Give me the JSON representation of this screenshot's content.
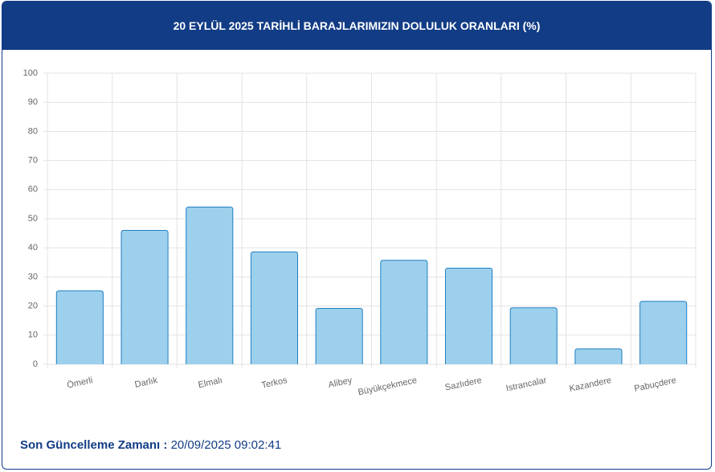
{
  "chart_data": {
    "type": "bar",
    "title": "20 EYLÜL 2025 TARİHLİ BARAJLARIMIZIN DOLULUK ORANLARI (%)",
    "categories": [
      "Ömerli",
      "Darlık",
      "Elmalı",
      "Terkos",
      "Alibey",
      "Büyükçekmece",
      "Sazlıdere",
      "Istrancalar",
      "Kazandere",
      "Pabuçdere"
    ],
    "values": [
      25.2,
      46,
      54,
      38.6,
      19.2,
      35.7,
      33,
      19.4,
      5.3,
      21.6
    ],
    "color": "#9dd0ec",
    "border_color": "#1f7fc4",
    "ylim": [
      0,
      100
    ],
    "yticks": [
      0,
      10,
      20,
      30,
      40,
      50,
      60,
      70,
      80,
      90,
      100
    ],
    "grid": true
  },
  "footer": {
    "label": "Son Güncelleme Zamanı :",
    "value": "20/09/2025 09:02:41"
  }
}
